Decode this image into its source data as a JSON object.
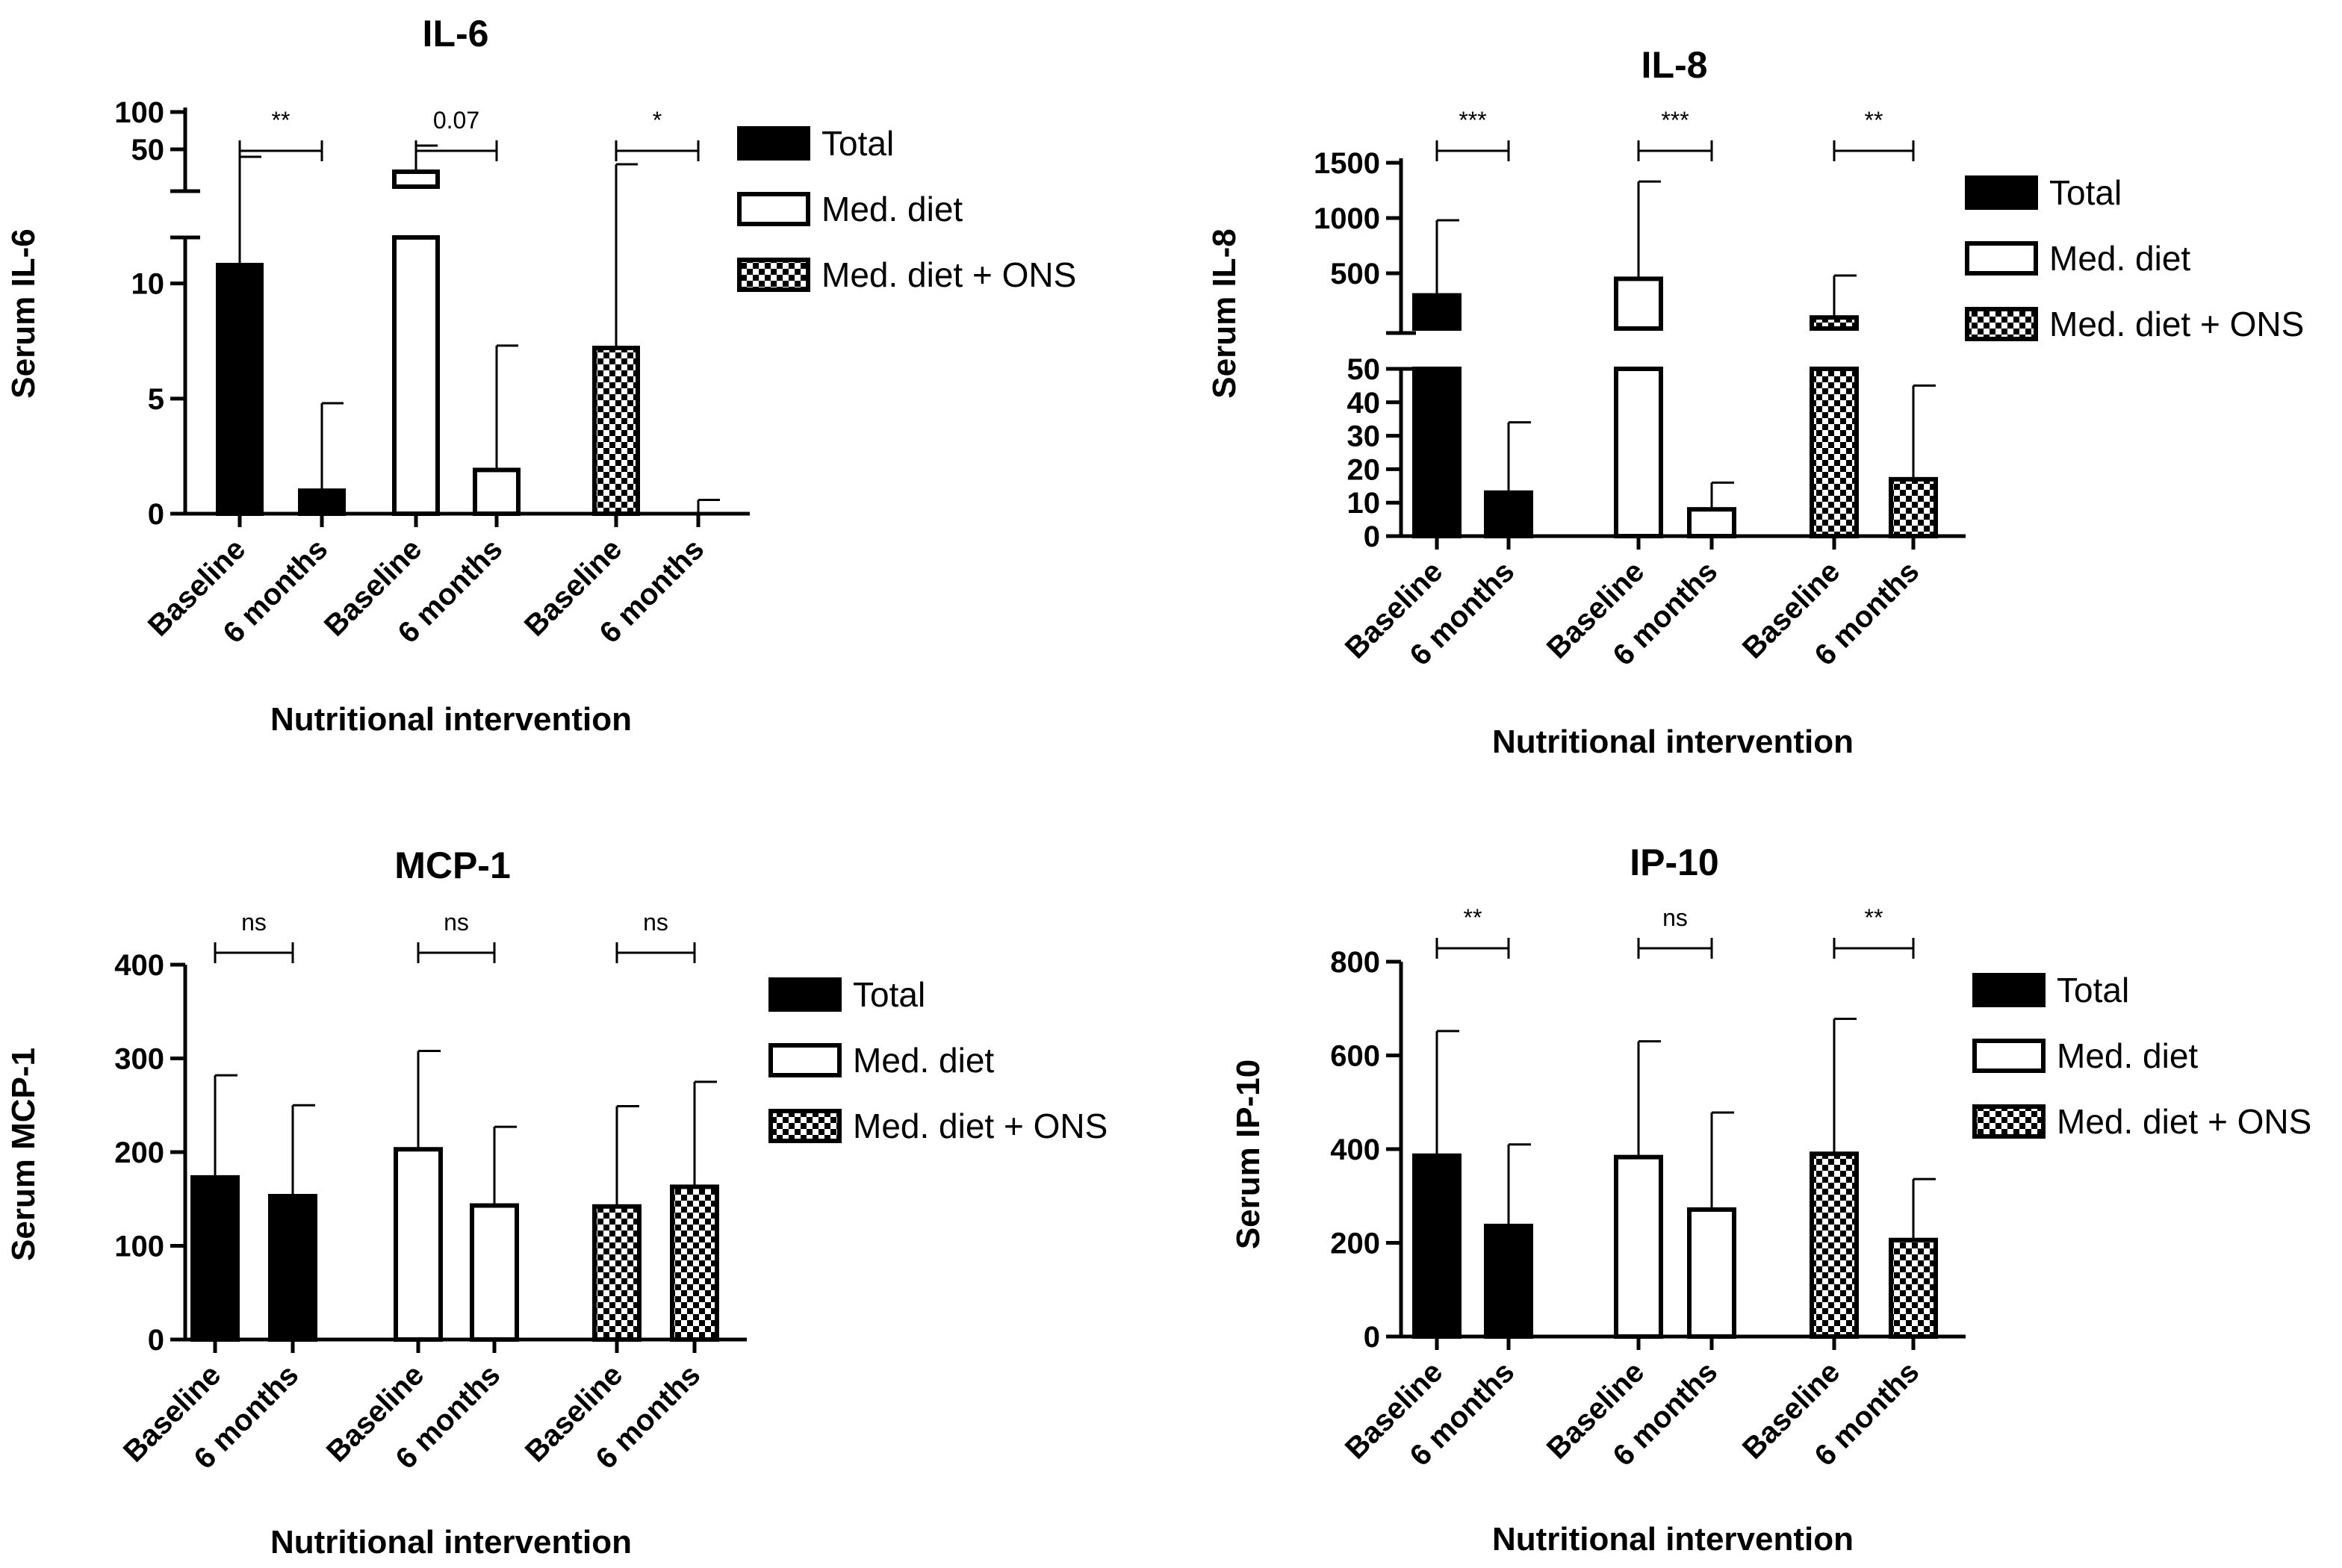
{
  "chart_data": [
    {
      "type": "bar",
      "panel": "IL-6",
      "title": "IL-6",
      "ylabel": "Serum IL-6",
      "xlabel": "Nutritional intervention",
      "axis_break": true,
      "ylim_lower": [
        0,
        12
      ],
      "ylim_upper": [
        0,
        100
      ],
      "yticks_lower": [
        "0",
        "5",
        "10"
      ],
      "yticks_upper": [
        "50",
        "100"
      ],
      "categories": [
        "Baseline",
        "6 months",
        "Baseline",
        "6 months",
        "Baseline",
        "6 months"
      ],
      "groups": [
        "Total",
        "Total",
        "Med. diet",
        "Med. diet",
        "Med. diet + ONS",
        "Med. diet + ONS"
      ],
      "values": [
        10.8,
        1.0,
        20,
        1.9,
        7.2,
        0.0
      ],
      "errors": [
        40,
        4.8,
        55,
        7.3,
        30,
        0.6
      ],
      "significance": [
        "**",
        "0.07",
        "*"
      ],
      "legend": [
        "Total",
        "Med. diet",
        "Med. diet + ONS"
      ]
    },
    {
      "type": "bar",
      "panel": "IL-8",
      "title": "IL-8",
      "ylabel": "Serum IL-8",
      "xlabel": "Nutritional intervention",
      "axis_break": true,
      "ylim_lower": [
        0,
        50
      ],
      "ylim_upper": [
        0,
        1500
      ],
      "yticks_lower": [
        "0",
        "10",
        "20",
        "30",
        "40",
        "50"
      ],
      "yticks_upper": [
        "500",
        "1000",
        "1500"
      ],
      "categories": [
        "Baseline",
        "6 months",
        "Baseline",
        "6 months",
        "Baseline",
        "6 months"
      ],
      "groups": [
        "Total",
        "Total",
        "Med. diet",
        "Med. diet",
        "Med. diet + ONS",
        "Med. diet + ONS"
      ],
      "values": [
        300,
        13,
        450,
        8,
        100,
        17
      ],
      "errors": [
        980,
        34,
        1330,
        16,
        480,
        45
      ],
      "significance": [
        "***",
        "***",
        "**"
      ],
      "legend": [
        "Total",
        "Med. diet",
        "Med. diet + ONS"
      ]
    },
    {
      "type": "bar",
      "panel": "MCP-1",
      "title": "MCP-1",
      "ylabel": "Serum MCP-1",
      "xlabel": "Nutritional intervention",
      "axis_break": false,
      "ylim": [
        0,
        400
      ],
      "yticks": [
        "0",
        "100",
        "200",
        "300",
        "400"
      ],
      "categories": [
        "Baseline",
        "6 months",
        "Baseline",
        "6 months",
        "Baseline",
        "6 months"
      ],
      "groups": [
        "Total",
        "Total",
        "Med. diet",
        "Med. diet",
        "Med. diet + ONS",
        "Med. diet + ONS"
      ],
      "values": [
        173,
        153,
        203,
        143,
        142,
        163
      ],
      "errors": [
        282,
        250,
        308,
        227,
        249,
        275
      ],
      "significance": [
        "ns",
        "ns",
        "ns"
      ],
      "legend": [
        "Total",
        "Med. diet",
        "Med. diet + ONS"
      ]
    },
    {
      "type": "bar",
      "panel": "IP-10",
      "title": "IP-10",
      "ylabel": "Serum IP-10",
      "xlabel": "Nutritional intervention",
      "axis_break": false,
      "ylim": [
        0,
        800
      ],
      "yticks": [
        "0",
        "200",
        "400",
        "600",
        "800"
      ],
      "categories": [
        "Baseline",
        "6 months",
        "Baseline",
        "6 months",
        "Baseline",
        "6 months"
      ],
      "groups": [
        "Total",
        "Total",
        "Med. diet",
        "Med. diet",
        "Med. diet + ONS",
        "Med. diet + ONS"
      ],
      "values": [
        386,
        236,
        383,
        271,
        390,
        206
      ],
      "errors": [
        652,
        410,
        630,
        478,
        678,
        336
      ],
      "significance": [
        "**",
        "ns",
        "**"
      ],
      "legend": [
        "Total",
        "Med. diet",
        "Med. diet + ONS"
      ]
    }
  ]
}
